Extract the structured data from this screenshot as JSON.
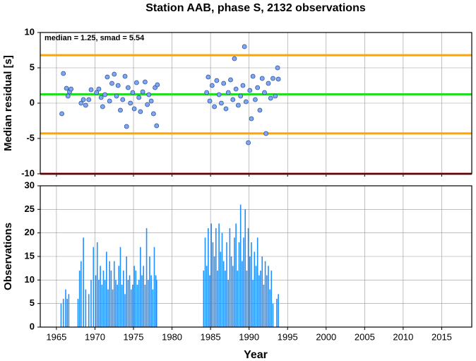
{
  "chart_data": [
    {
      "type": "scatter",
      "title": "Station AAB, phase S, 2132 observations",
      "ylabel": "Median residual [s]",
      "annotation": "median = 1.25, smad = 5.54",
      "x": [
        1965.7,
        1965.9,
        1966.3,
        1966.5,
        1966.7,
        1966.9,
        1968.2,
        1968.5,
        1968.8,
        1969.2,
        1969.5,
        1970.2,
        1970.5,
        1970.8,
        1971.0,
        1971.3,
        1971.6,
        1971.9,
        1972.2,
        1972.5,
        1972.8,
        1973.0,
        1973.3,
        1973.6,
        1973.9,
        1974.1,
        1974.3,
        1974.6,
        1974.9,
        1975.1,
        1975.4,
        1975.7,
        1975.9,
        1976.2,
        1976.5,
        1976.8,
        1977.0,
        1977.3,
        1977.6,
        1977.8,
        1978.0,
        1978.1,
        1984.5,
        1984.7,
        1984.9,
        1985.2,
        1985.5,
        1985.8,
        1986.1,
        1986.4,
        1986.7,
        1987.0,
        1987.3,
        1987.6,
        1987.9,
        1988.1,
        1988.3,
        1988.6,
        1988.9,
        1989.2,
        1989.4,
        1989.6,
        1989.9,
        1990.1,
        1990.3,
        1990.5,
        1990.8,
        1991.1,
        1991.4,
        1991.7,
        1992.0,
        1992.2,
        1992.5,
        1992.8,
        1993.1,
        1993.4,
        1993.7,
        1993.8
      ],
      "values": [
        -1.5,
        4.2,
        2.1,
        1.0,
        1.6,
        2.0,
        0.0,
        0.5,
        -0.3,
        0.5,
        1.9,
        1.5,
        2.0,
        0.8,
        -0.5,
        1.2,
        3.7,
        0.3,
        2.8,
        4.1,
        1.0,
        2.5,
        -1.0,
        0.5,
        3.8,
        -3.3,
        2.2,
        0.0,
        1.5,
        -0.8,
        2.9,
        0.8,
        -1.2,
        1.6,
        3.0,
        -0.2,
        1.2,
        0.3,
        -1.5,
        2.2,
        -3.2,
        2.6,
        1.5,
        3.7,
        0.3,
        2.5,
        -0.5,
        3.2,
        1.2,
        0.0,
        2.8,
        -0.8,
        1.5,
        3.3,
        0.5,
        6.3,
        2.0,
        -0.3,
        1.0,
        2.5,
        8.0,
        0.2,
        -5.6,
        1.8,
        -2.2,
        3.8,
        0.5,
        2.2,
        -1.0,
        3.5,
        1.5,
        -4.3,
        2.8,
        0.7,
        3.5,
        1.0,
        5.0,
        3.4
      ],
      "color": "#7fa8f0",
      "hlines": [
        {
          "value": 6.79,
          "color": "#ffa500"
        },
        {
          "value": 1.25,
          "color": "#22dd22"
        },
        {
          "value": -4.29,
          "color": "#ffa500"
        },
        {
          "value": -10,
          "color": "#b22222"
        }
      ],
      "xlim": [
        1962.9,
        2018.9
      ],
      "xticks": [
        1965,
        1970,
        1975,
        1980,
        1985,
        1990,
        1995,
        2000,
        2005,
        2010,
        2015
      ],
      "ylim": [
        -10,
        10
      ],
      "yticks": [
        -10,
        -5,
        0,
        5,
        10
      ],
      "grid": true
    },
    {
      "type": "bar",
      "ylabel": "Observations",
      "xlabel": "Year",
      "x": [
        1965.6,
        1965.9,
        1966.2,
        1966.4,
        1966.6,
        1967.8,
        1968.0,
        1968.2,
        1968.5,
        1968.8,
        1969.2,
        1969.5,
        1969.8,
        1970.1,
        1970.3,
        1970.5,
        1970.7,
        1970.9,
        1971.1,
        1971.3,
        1971.5,
        1971.7,
        1971.9,
        1972.1,
        1972.3,
        1972.5,
        1972.7,
        1972.9,
        1973.1,
        1973.3,
        1973.5,
        1973.7,
        1973.9,
        1974.1,
        1974.3,
        1974.5,
        1974.7,
        1974.9,
        1975.1,
        1975.3,
        1975.5,
        1975.7,
        1975.9,
        1976.1,
        1976.3,
        1976.5,
        1976.7,
        1976.9,
        1977.1,
        1977.3,
        1977.5,
        1977.7,
        1977.9,
        1978.0,
        1984.1,
        1984.3,
        1984.5,
        1984.7,
        1984.9,
        1985.1,
        1985.3,
        1985.5,
        1985.7,
        1985.9,
        1986.1,
        1986.3,
        1986.5,
        1986.7,
        1986.9,
        1987.1,
        1987.3,
        1987.5,
        1987.7,
        1987.9,
        1988.1,
        1988.3,
        1988.5,
        1988.7,
        1988.9,
        1989.1,
        1989.3,
        1989.5,
        1989.7,
        1989.9,
        1990.1,
        1990.3,
        1990.5,
        1990.7,
        1990.9,
        1991.1,
        1991.3,
        1991.5,
        1991.7,
        1991.9,
        1992.1,
        1992.3,
        1992.5,
        1992.7,
        1992.9,
        1993.1,
        1993.6,
        1993.8
      ],
      "values": [
        5,
        6,
        8,
        6,
        7,
        6,
        12,
        14,
        19,
        8,
        7,
        10,
        17,
        11,
        18,
        10,
        13,
        9,
        12,
        10,
        16,
        8,
        14,
        12,
        8,
        14,
        10,
        9,
        13,
        17,
        9,
        12,
        7,
        15,
        10,
        11,
        8,
        9,
        13,
        12,
        9,
        10,
        17,
        11,
        13,
        9,
        21,
        10,
        15,
        11,
        8,
        17,
        11,
        10,
        12,
        19,
        13,
        21,
        11,
        22,
        18,
        15,
        21,
        12,
        22,
        16,
        20,
        14,
        12,
        18,
        10,
        21,
        15,
        13,
        19,
        22,
        12,
        18,
        26,
        14,
        19,
        25,
        12,
        21,
        15,
        18,
        10,
        16,
        13,
        19,
        11,
        12,
        15,
        9,
        14,
        11,
        13,
        8,
        12,
        5,
        6,
        7
      ],
      "color": "#1e90ff",
      "xlim": [
        1962.9,
        2018.9
      ],
      "xticks": [
        1965,
        1970,
        1975,
        1980,
        1985,
        1990,
        1995,
        2000,
        2005,
        2010,
        2015
      ],
      "ylim": [
        0,
        30
      ],
      "yticks": [
        0,
        5,
        10,
        15,
        20,
        25,
        30
      ],
      "grid": true
    }
  ]
}
